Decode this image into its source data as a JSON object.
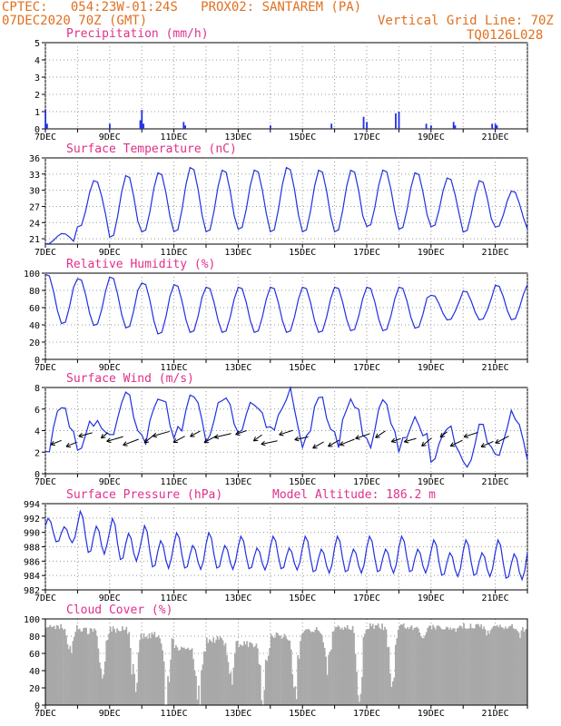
{
  "header": {
    "line1": "CPTEC:   054:23W-01:24S   PROX02: SANTAREM (PA)",
    "line2": "07DEC2020 70Z (GMT)",
    "vgrid": "Vertical Grid Line: 70Z",
    "code": "TQ0126L028"
  },
  "colors": {
    "header": "#e07020",
    "title": "#e0308a",
    "line": "#2030e0",
    "cloud": "#a8a8a8",
    "wind_arrow": "#000000"
  },
  "chart_data": [
    {
      "id": "precip",
      "type": "bar",
      "title": "Precipitation (mm/h)",
      "ylim": [
        0,
        5
      ],
      "yticks": [
        0,
        1,
        2,
        3,
        4,
        5
      ],
      "x_range_days": [
        7.0,
        22.0
      ],
      "xticks": [
        "7DEC",
        "9DEC",
        "11DEC",
        "13DEC",
        "15DEC",
        "17DEC",
        "19DEC",
        "21DEC"
      ],
      "x": [
        7.0,
        7.05,
        9.0,
        9.95,
        10.0,
        10.05,
        11.3,
        11.35,
        14.0,
        15.9,
        16.9,
        17.0,
        17.9,
        18.0,
        18.85,
        19.0,
        19.7,
        19.75,
        20.9,
        21.0,
        21.05
      ],
      "values": [
        1.1,
        0.3,
        0.3,
        0.5,
        1.1,
        0.3,
        0.4,
        0.2,
        0.2,
        0.3,
        0.7,
        0.4,
        0.9,
        1.0,
        0.3,
        0.2,
        0.4,
        0.2,
        0.3,
        0.3,
        0.2
      ]
    },
    {
      "id": "temp",
      "type": "line",
      "title": "Surface Temperature (nC)",
      "ylim": [
        20,
        36
      ],
      "yticks": [
        21,
        24,
        27,
        30,
        33,
        36
      ],
      "x_range_days": [
        7.0,
        22.0
      ],
      "xticks": [
        "7DEC",
        "9DEC",
        "11DEC",
        "13DEC",
        "15DEC",
        "17DEC",
        "19DEC",
        "21DEC"
      ],
      "daily_max": [
        22,
        32,
        33,
        33.5,
        34.5,
        34,
        34,
        34.5,
        34,
        34,
        34,
        33.5,
        32.5,
        32,
        30,
        34
      ],
      "daily_min": [
        20,
        23,
        21,
        22,
        22,
        22,
        22.5,
        22,
        22,
        22,
        23,
        22.5,
        23,
        22,
        23,
        22.5
      ]
    },
    {
      "id": "rh",
      "type": "line",
      "title": "Relative Humidity (%)",
      "ylim": [
        0,
        100
      ],
      "yticks": [
        0,
        20,
        40,
        60,
        80,
        100
      ],
      "x_range_days": [
        7.0,
        22.0
      ],
      "xticks": [
        "7DEC",
        "9DEC",
        "11DEC",
        "13DEC",
        "15DEC",
        "17DEC",
        "19DEC",
        "21DEC"
      ],
      "daily_max": [
        100,
        95,
        97,
        90,
        88,
        85,
        85,
        85,
        85,
        85,
        85,
        85,
        75,
        80,
        87,
        88
      ],
      "daily_min": [
        40,
        38,
        35,
        28,
        30,
        30,
        30,
        30,
        30,
        32,
        32,
        35,
        45,
        45,
        45,
        35
      ]
    },
    {
      "id": "wind",
      "type": "line",
      "title": "Surface Wind (m/s)",
      "ylim": [
        0,
        8
      ],
      "yticks": [
        0,
        2,
        4,
        6,
        8
      ],
      "x_range_days": [
        7.0,
        22.0
      ],
      "xticks": [
        "7DEC",
        "9DEC",
        "11DEC",
        "13DEC",
        "15DEC",
        "17DEC",
        "19DEC",
        "21DEC"
      ],
      "daily_max": [
        6.5,
        5,
        7,
        7.5,
        7,
        7.5,
        7,
        7.5,
        7,
        7,
        6.5,
        5,
        4,
        4,
        5.5,
        6
      ],
      "daily_min": [
        2.5,
        2.5,
        3,
        3,
        3.5,
        3.5,
        3.5,
        3.5,
        3,
        3,
        3,
        2.5,
        1.5,
        1,
        1.5,
        1
      ]
    },
    {
      "id": "pres",
      "type": "line",
      "title": "Surface Pressure (hPa)",
      "annotation": "Model Altitude: 186.2 m",
      "ylim": [
        982,
        994
      ],
      "yticks": [
        982,
        984,
        986,
        988,
        990,
        992,
        994
      ],
      "x_range_days": [
        7.0,
        22.0
      ],
      "xticks": [
        "7DEC",
        "9DEC",
        "11DEC",
        "13DEC",
        "15DEC",
        "17DEC",
        "19DEC",
        "21DEC"
      ],
      "semidiurnal_max": [
        992,
        993,
        992,
        991,
        990,
        990,
        989.5,
        989.5,
        989.5,
        989.5,
        989.5,
        989.5,
        989,
        989,
        989,
        989
      ],
      "semidiurnal_min": [
        988,
        986,
        985,
        984,
        984,
        984,
        984,
        984,
        983.5,
        983.5,
        983.5,
        983.5,
        983,
        983,
        982.5,
        982.5
      ]
    },
    {
      "id": "cloud",
      "type": "area",
      "title": "Cloud Cover (%)",
      "ylim": [
        0,
        100
      ],
      "yticks": [
        0,
        20,
        40,
        60,
        80,
        100
      ],
      "x_range_days": [
        7.0,
        22.0
      ],
      "xticks": [
        "7DEC",
        "9DEC",
        "11DEC",
        "13DEC",
        "15DEC",
        "17DEC",
        "19DEC",
        "21DEC"
      ],
      "daily_high": [
        95,
        90,
        92,
        85,
        70,
        80,
        75,
        85,
        92,
        95,
        95,
        95,
        95,
        95,
        95,
        95
      ],
      "daily_low": [
        60,
        30,
        10,
        5,
        5,
        10,
        10,
        15,
        30,
        10,
        15,
        80,
        90,
        85,
        85,
        90
      ]
    }
  ]
}
